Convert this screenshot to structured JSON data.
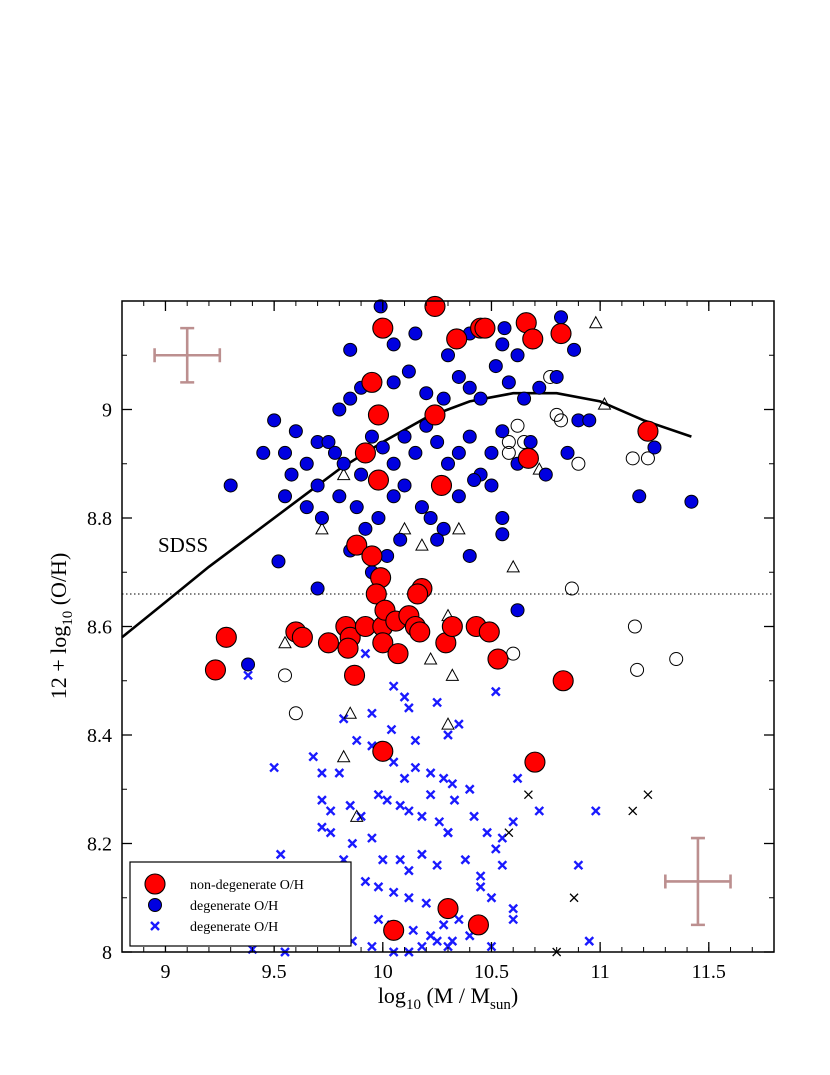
{
  "chart_data": {
    "type": "scatter",
    "xlabel": {
      "main": "log",
      "sub1": "10",
      "mid": " (M / M",
      "sub2": "sun",
      "end": ")"
    },
    "ylabel": {
      "main": "12 + log",
      "sub": "10",
      "end": " (O/H)"
    },
    "xlim": [
      8.8,
      11.8
    ],
    "ylim": [
      8.0,
      9.2
    ],
    "xticks": [
      "9",
      "9.5",
      "10",
      "10.5",
      "11",
      "11.5"
    ],
    "yticks": [
      "8",
      "8.2",
      "8.4",
      "8.6",
      "8.8",
      "9"
    ],
    "grid": false,
    "legend_position": "bottom-left",
    "annotation": "SDSS",
    "reference_line": {
      "y": 8.66,
      "style": "dotted"
    },
    "colors": {
      "red": "#ff0000",
      "blue": "#0000e0",
      "cross_blue": "#1a1aff",
      "errorbar": "#bc8f8f"
    },
    "legend": [
      {
        "label": "non-degenerate  O/H",
        "marker": "red-circle"
      },
      {
        "label": "degenerate O/H",
        "marker": "blue-circle"
      },
      {
        "label": "degenerate O/H",
        "marker": "blue-cross"
      }
    ],
    "sdss_curve": {
      "x": [
        8.8,
        9.0,
        9.2,
        9.4,
        9.6,
        9.8,
        10.0,
        10.2,
        10.4,
        10.6,
        10.8,
        11.0,
        11.2,
        11.42
      ],
      "y": [
        8.58,
        8.645,
        8.71,
        8.77,
        8.83,
        8.89,
        8.94,
        8.985,
        9.015,
        9.03,
        9.03,
        9.015,
        8.98,
        8.95
      ]
    },
    "error_bars": [
      {
        "x": 9.1,
        "y": 9.1,
        "xerr": 0.15,
        "yerr": 0.05
      },
      {
        "x": 11.45,
        "y": 8.13,
        "xerr": 0.15,
        "yerr": 0.08
      }
    ],
    "series": [
      {
        "name": "non-degenerate  O/H",
        "marker": "red-circle",
        "points": [
          [
            10.24,
            9.19
          ],
          [
            10.0,
            9.15
          ],
          [
            10.45,
            9.15
          ],
          [
            10.47,
            9.15
          ],
          [
            10.66,
            9.16
          ],
          [
            10.82,
            9.14
          ],
          [
            10.69,
            9.13
          ],
          [
            10.34,
            9.13
          ],
          [
            9.95,
            9.05
          ],
          [
            11.22,
            8.96
          ],
          [
            9.98,
            8.99
          ],
          [
            10.24,
            8.99
          ],
          [
            9.92,
            8.92
          ],
          [
            9.98,
            8.87
          ],
          [
            10.27,
            8.86
          ],
          [
            10.67,
            8.91
          ],
          [
            9.88,
            8.75
          ],
          [
            9.95,
            8.73
          ],
          [
            9.99,
            8.69
          ],
          [
            9.97,
            8.66
          ],
          [
            10.18,
            8.67
          ],
          [
            10.16,
            8.66
          ],
          [
            9.28,
            8.58
          ],
          [
            9.6,
            8.59
          ],
          [
            9.63,
            8.58
          ],
          [
            9.75,
            8.57
          ],
          [
            9.83,
            8.6
          ],
          [
            9.85,
            8.58
          ],
          [
            9.84,
            8.56
          ],
          [
            9.92,
            8.6
          ],
          [
            10.0,
            8.6
          ],
          [
            10.01,
            8.63
          ],
          [
            10.06,
            8.61
          ],
          [
            10.12,
            8.62
          ],
          [
            10.15,
            8.6
          ],
          [
            10.17,
            8.59
          ],
          [
            10.29,
            8.57
          ],
          [
            10.32,
            8.6
          ],
          [
            10.43,
            8.6
          ],
          [
            10.49,
            8.59
          ],
          [
            10.0,
            8.57
          ],
          [
            10.07,
            8.55
          ],
          [
            9.23,
            8.52
          ],
          [
            9.87,
            8.51
          ],
          [
            10.53,
            8.54
          ],
          [
            10.83,
            8.5
          ],
          [
            10.0,
            8.37
          ],
          [
            10.7,
            8.35
          ],
          [
            10.3,
            8.08
          ],
          [
            10.05,
            8.04
          ],
          [
            10.44,
            8.05
          ]
        ]
      },
      {
        "name": "degenerate O/H",
        "marker": "blue-circle",
        "points": [
          [
            9.99,
            9.19
          ],
          [
            10.4,
            9.14
          ],
          [
            10.56,
            9.15
          ],
          [
            10.82,
            9.17
          ],
          [
            9.85,
            9.11
          ],
          [
            10.05,
            9.12
          ],
          [
            10.15,
            9.14
          ],
          [
            10.3,
            9.1
          ],
          [
            10.55,
            9.12
          ],
          [
            10.62,
            9.1
          ],
          [
            10.88,
            9.11
          ],
          [
            9.5,
            8.98
          ],
          [
            9.55,
            8.92
          ],
          [
            9.6,
            8.96
          ],
          [
            9.7,
            8.94
          ],
          [
            9.75,
            8.94
          ],
          [
            9.8,
            9.0
          ],
          [
            9.85,
            9.02
          ],
          [
            9.9,
            9.04
          ],
          [
            10.05,
            9.05
          ],
          [
            10.12,
            9.07
          ],
          [
            10.2,
            9.03
          ],
          [
            10.28,
            9.02
          ],
          [
            10.35,
            9.06
          ],
          [
            10.4,
            9.04
          ],
          [
            10.45,
            9.02
          ],
          [
            10.52,
            9.08
          ],
          [
            10.58,
            9.05
          ],
          [
            10.65,
            9.02
          ],
          [
            10.72,
            9.04
          ],
          [
            10.8,
            9.06
          ],
          [
            10.9,
            8.98
          ],
          [
            10.95,
            8.98
          ],
          [
            11.25,
            8.93
          ],
          [
            9.45,
            8.92
          ],
          [
            9.58,
            8.88
          ],
          [
            9.65,
            8.9
          ],
          [
            9.7,
            8.86
          ],
          [
            9.78,
            8.92
          ],
          [
            9.82,
            8.9
          ],
          [
            9.9,
            8.88
          ],
          [
            9.95,
            8.95
          ],
          [
            10.0,
            8.93
          ],
          [
            10.05,
            8.9
          ],
          [
            10.1,
            8.95
          ],
          [
            10.15,
            8.92
          ],
          [
            10.2,
            8.97
          ],
          [
            10.25,
            8.94
          ],
          [
            10.3,
            8.9
          ],
          [
            10.35,
            8.92
          ],
          [
            10.4,
            8.95
          ],
          [
            10.45,
            8.88
          ],
          [
            10.5,
            8.92
          ],
          [
            10.55,
            8.96
          ],
          [
            10.62,
            8.9
          ],
          [
            10.68,
            8.94
          ],
          [
            10.75,
            8.88
          ],
          [
            10.85,
            8.92
          ],
          [
            9.3,
            8.86
          ],
          [
            9.55,
            8.84
          ],
          [
            9.65,
            8.82
          ],
          [
            9.72,
            8.8
          ],
          [
            9.8,
            8.84
          ],
          [
            9.88,
            8.82
          ],
          [
            9.92,
            8.78
          ],
          [
            9.98,
            8.8
          ],
          [
            10.05,
            8.84
          ],
          [
            10.1,
            8.86
          ],
          [
            10.18,
            8.82
          ],
          [
            10.22,
            8.8
          ],
          [
            10.28,
            8.78
          ],
          [
            10.35,
            8.84
          ],
          [
            10.42,
            8.87
          ],
          [
            10.5,
            8.86
          ],
          [
            10.55,
            8.8
          ],
          [
            11.18,
            8.84
          ],
          [
            11.42,
            8.83
          ],
          [
            9.52,
            8.72
          ],
          [
            9.7,
            8.67
          ],
          [
            9.85,
            8.74
          ],
          [
            9.95,
            8.7
          ],
          [
            10.02,
            8.73
          ],
          [
            10.08,
            8.76
          ],
          [
            10.25,
            8.76
          ],
          [
            10.4,
            8.73
          ],
          [
            10.55,
            8.77
          ],
          [
            10.62,
            8.63
          ],
          [
            9.38,
            8.53
          ]
        ]
      },
      {
        "name": "degenerate O/H",
        "marker": "blue-cross",
        "points": [
          [
            9.38,
            8.51
          ],
          [
            9.92,
            8.55
          ],
          [
            10.05,
            8.49
          ],
          [
            10.1,
            8.47
          ],
          [
            10.25,
            8.46
          ],
          [
            10.52,
            8.48
          ],
          [
            9.82,
            8.43
          ],
          [
            9.95,
            8.44
          ],
          [
            10.04,
            8.41
          ],
          [
            10.12,
            8.45
          ],
          [
            10.15,
            8.39
          ],
          [
            10.3,
            8.4
          ],
          [
            10.35,
            8.42
          ],
          [
            9.5,
            8.34
          ],
          [
            9.68,
            8.36
          ],
          [
            9.72,
            8.33
          ],
          [
            9.8,
            8.33
          ],
          [
            9.88,
            8.39
          ],
          [
            9.95,
            8.38
          ],
          [
            10.0,
            8.36
          ],
          [
            10.05,
            8.35
          ],
          [
            10.1,
            8.32
          ],
          [
            10.15,
            8.34
          ],
          [
            10.22,
            8.33
          ],
          [
            10.28,
            8.32
          ],
          [
            10.32,
            8.31
          ],
          [
            10.4,
            8.3
          ],
          [
            10.62,
            8.32
          ],
          [
            9.72,
            8.28
          ],
          [
            9.76,
            8.26
          ],
          [
            9.85,
            8.27
          ],
          [
            9.9,
            8.25
          ],
          [
            9.98,
            8.29
          ],
          [
            10.02,
            8.28
          ],
          [
            10.08,
            8.27
          ],
          [
            10.12,
            8.26
          ],
          [
            10.18,
            8.25
          ],
          [
            10.22,
            8.29
          ],
          [
            10.26,
            8.24
          ],
          [
            10.3,
            8.22
          ],
          [
            10.33,
            8.28
          ],
          [
            10.42,
            8.25
          ],
          [
            10.48,
            8.22
          ],
          [
            10.55,
            8.21
          ],
          [
            10.72,
            8.26
          ],
          [
            10.6,
            8.24
          ],
          [
            9.72,
            8.23
          ],
          [
            9.76,
            8.22
          ],
          [
            9.86,
            8.2
          ],
          [
            9.95,
            8.21
          ],
          [
            10.0,
            8.17
          ],
          [
            10.08,
            8.17
          ],
          [
            10.12,
            8.15
          ],
          [
            10.18,
            8.18
          ],
          [
            10.25,
            8.16
          ],
          [
            10.3,
            8.22
          ],
          [
            10.38,
            8.17
          ],
          [
            10.45,
            8.14
          ],
          [
            10.52,
            8.19
          ],
          [
            10.55,
            8.16
          ],
          [
            10.9,
            8.16
          ],
          [
            10.98,
            8.26
          ],
          [
            9.53,
            8.18
          ],
          [
            9.82,
            8.17
          ],
          [
            9.92,
            8.13
          ],
          [
            9.98,
            8.12
          ],
          [
            10.05,
            8.11
          ],
          [
            10.12,
            8.1
          ],
          [
            10.2,
            8.09
          ],
          [
            10.28,
            8.08
          ],
          [
            10.35,
            8.06
          ],
          [
            10.45,
            8.12
          ],
          [
            10.5,
            8.1
          ],
          [
            10.6,
            8.08
          ],
          [
            9.98,
            8.06
          ],
          [
            10.04,
            8.05
          ],
          [
            10.14,
            8.04
          ],
          [
            10.22,
            8.03
          ],
          [
            10.28,
            8.05
          ],
          [
            10.32,
            8.02
          ],
          [
            10.4,
            8.03
          ],
          [
            10.6,
            8.06
          ],
          [
            9.86,
            8.02
          ],
          [
            9.95,
            8.01
          ],
          [
            10.05,
            8.0
          ],
          [
            10.18,
            8.01
          ],
          [
            10.25,
            8.02
          ],
          [
            10.3,
            8.01
          ],
          [
            10.5,
            8.01
          ],
          [
            10.95,
            8.02
          ],
          [
            9.4,
            8.005
          ],
          [
            9.55,
            8.0
          ],
          [
            10.12,
            8.0
          ]
        ]
      },
      {
        "name": "",
        "marker": "open-circle",
        "points": [
          [
            10.77,
            9.06
          ],
          [
            10.8,
            8.99
          ],
          [
            10.82,
            8.98
          ],
          [
            10.58,
            8.94
          ],
          [
            10.62,
            8.97
          ],
          [
            10.65,
            8.94
          ],
          [
            10.58,
            8.92
          ],
          [
            10.9,
            8.9
          ],
          [
            11.15,
            8.91
          ],
          [
            11.22,
            8.91
          ],
          [
            10.87,
            8.67
          ],
          [
            11.16,
            8.6
          ],
          [
            11.17,
            8.52
          ],
          [
            11.35,
            8.54
          ],
          [
            10.6,
            8.55
          ],
          [
            9.55,
            8.51
          ],
          [
            9.6,
            8.44
          ]
        ]
      },
      {
        "name": "",
        "marker": "open-triangle",
        "points": [
          [
            10.98,
            9.16
          ],
          [
            11.02,
            9.01
          ],
          [
            10.72,
            8.89
          ],
          [
            9.82,
            8.88
          ],
          [
            10.35,
            8.78
          ],
          [
            10.6,
            8.71
          ],
          [
            9.72,
            8.78
          ],
          [
            10.18,
            8.75
          ],
          [
            10.1,
            8.78
          ],
          [
            9.55,
            8.57
          ],
          [
            10.22,
            8.54
          ],
          [
            10.32,
            8.51
          ],
          [
            10.3,
            8.62
          ],
          [
            9.82,
            8.36
          ],
          [
            10.3,
            8.42
          ],
          [
            9.85,
            8.44
          ],
          [
            9.88,
            8.25
          ]
        ]
      },
      {
        "name": "",
        "marker": "black-cross",
        "points": [
          [
            10.67,
            8.29
          ],
          [
            10.58,
            8.22
          ],
          [
            11.22,
            8.29
          ],
          [
            11.15,
            8.26
          ],
          [
            10.88,
            8.1
          ],
          [
            10.8,
            8.0
          ]
        ]
      }
    ]
  }
}
